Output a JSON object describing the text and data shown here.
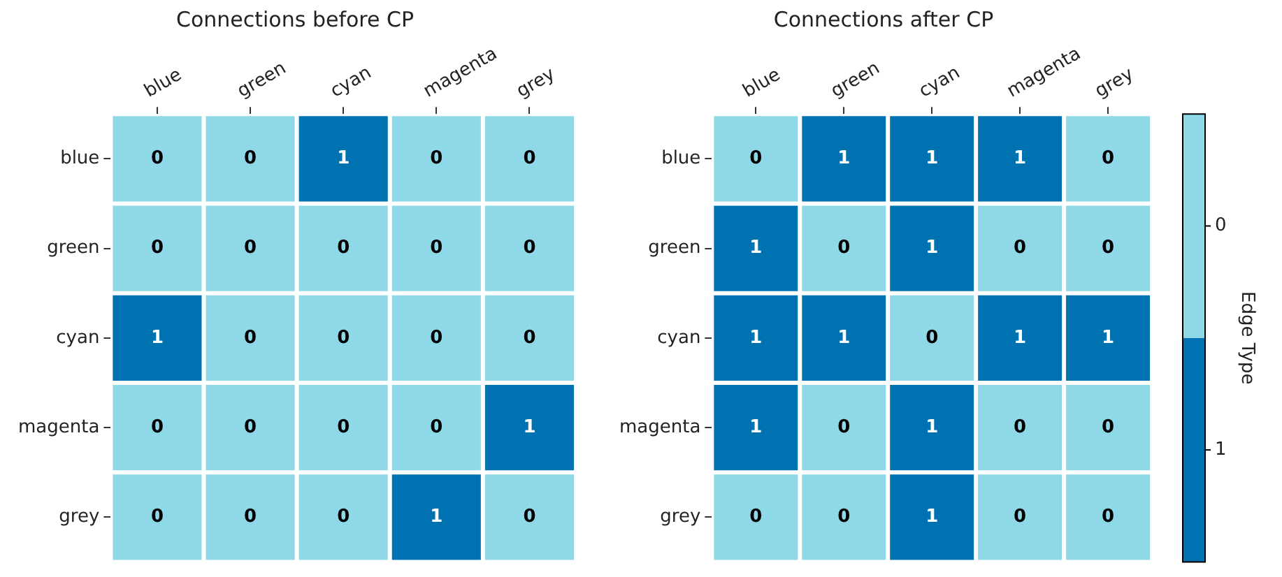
{
  "chart_data": [
    {
      "type": "heatmap",
      "title": "Connections before CP",
      "categories": [
        "blue",
        "green",
        "cyan",
        "magenta",
        "grey"
      ],
      "y_categories": [
        "blue",
        "green",
        "cyan",
        "magenta",
        "grey"
      ],
      "cells": [
        [
          0,
          0,
          1,
          0,
          0
        ],
        [
          0,
          0,
          0,
          0,
          0
        ],
        [
          1,
          0,
          0,
          0,
          0
        ],
        [
          0,
          0,
          0,
          0,
          1
        ],
        [
          0,
          0,
          0,
          1,
          0
        ]
      ],
      "colors": [
        "#8ed8e8",
        "#0072b2"
      ],
      "data_labels": true
    },
    {
      "type": "heatmap",
      "title": "Connections after CP",
      "categories": [
        "blue",
        "green",
        "cyan",
        "magenta",
        "grey"
      ],
      "y_categories": [
        "blue",
        "green",
        "cyan",
        "magenta",
        "grey"
      ],
      "cells": [
        [
          0,
          1,
          1,
          1,
          0
        ],
        [
          1,
          0,
          1,
          0,
          0
        ],
        [
          1,
          1,
          0,
          1,
          1
        ],
        [
          1,
          0,
          1,
          0,
          0
        ],
        [
          0,
          0,
          1,
          0,
          0
        ]
      ],
      "colors": [
        "#8ed8e8",
        "#0072b2"
      ],
      "data_labels": true,
      "clim": [
        1.5,
        -0.5
      ],
      "cticks": [
        0,
        1
      ],
      "clabel": "Edge Type"
    }
  ]
}
